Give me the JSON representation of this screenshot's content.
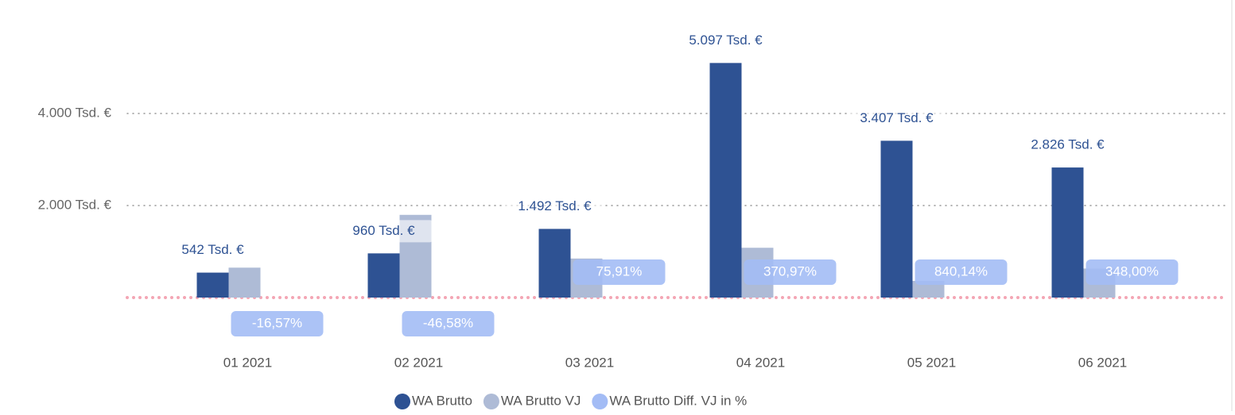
{
  "chart_data": {
    "type": "bar",
    "categories": [
      "01 2021",
      "02 2021",
      "03 2021",
      "04 2021",
      "05 2021",
      "06 2021"
    ],
    "series": [
      {
        "name": "WA Brutto",
        "color": "#2e5293",
        "values": [
          542,
          960,
          1492,
          5097,
          3407,
          2826
        ],
        "value_labels": [
          "542 Tsd. €",
          "960 Tsd. €",
          "1.492 Tsd. €",
          "5.097 Tsd. €",
          "3.407 Tsd. €",
          "2.826 Tsd. €"
        ]
      },
      {
        "name": "WA Brutto VJ",
        "color": "#aebbd6",
        "values": [
          650,
          1797,
          848,
          1082,
          362,
          631
        ]
      },
      {
        "name": "WA Brutto Diff. VJ in %",
        "color": "#a3bcf5",
        "values": [
          -16.57,
          -46.58,
          75.91,
          370.97,
          840.14,
          348.0
        ],
        "value_labels": [
          "-16,57%",
          "-46,58%",
          "75,91%",
          "370,97%",
          "840,14%",
          "348,00%"
        ]
      }
    ],
    "ylim": [
      0,
      6000
    ],
    "yticks": [
      {
        "value": 2000,
        "label": "2.000 Tsd. €"
      },
      {
        "value": 4000,
        "label": "4.000 Tsd. €"
      }
    ],
    "grid": true
  }
}
